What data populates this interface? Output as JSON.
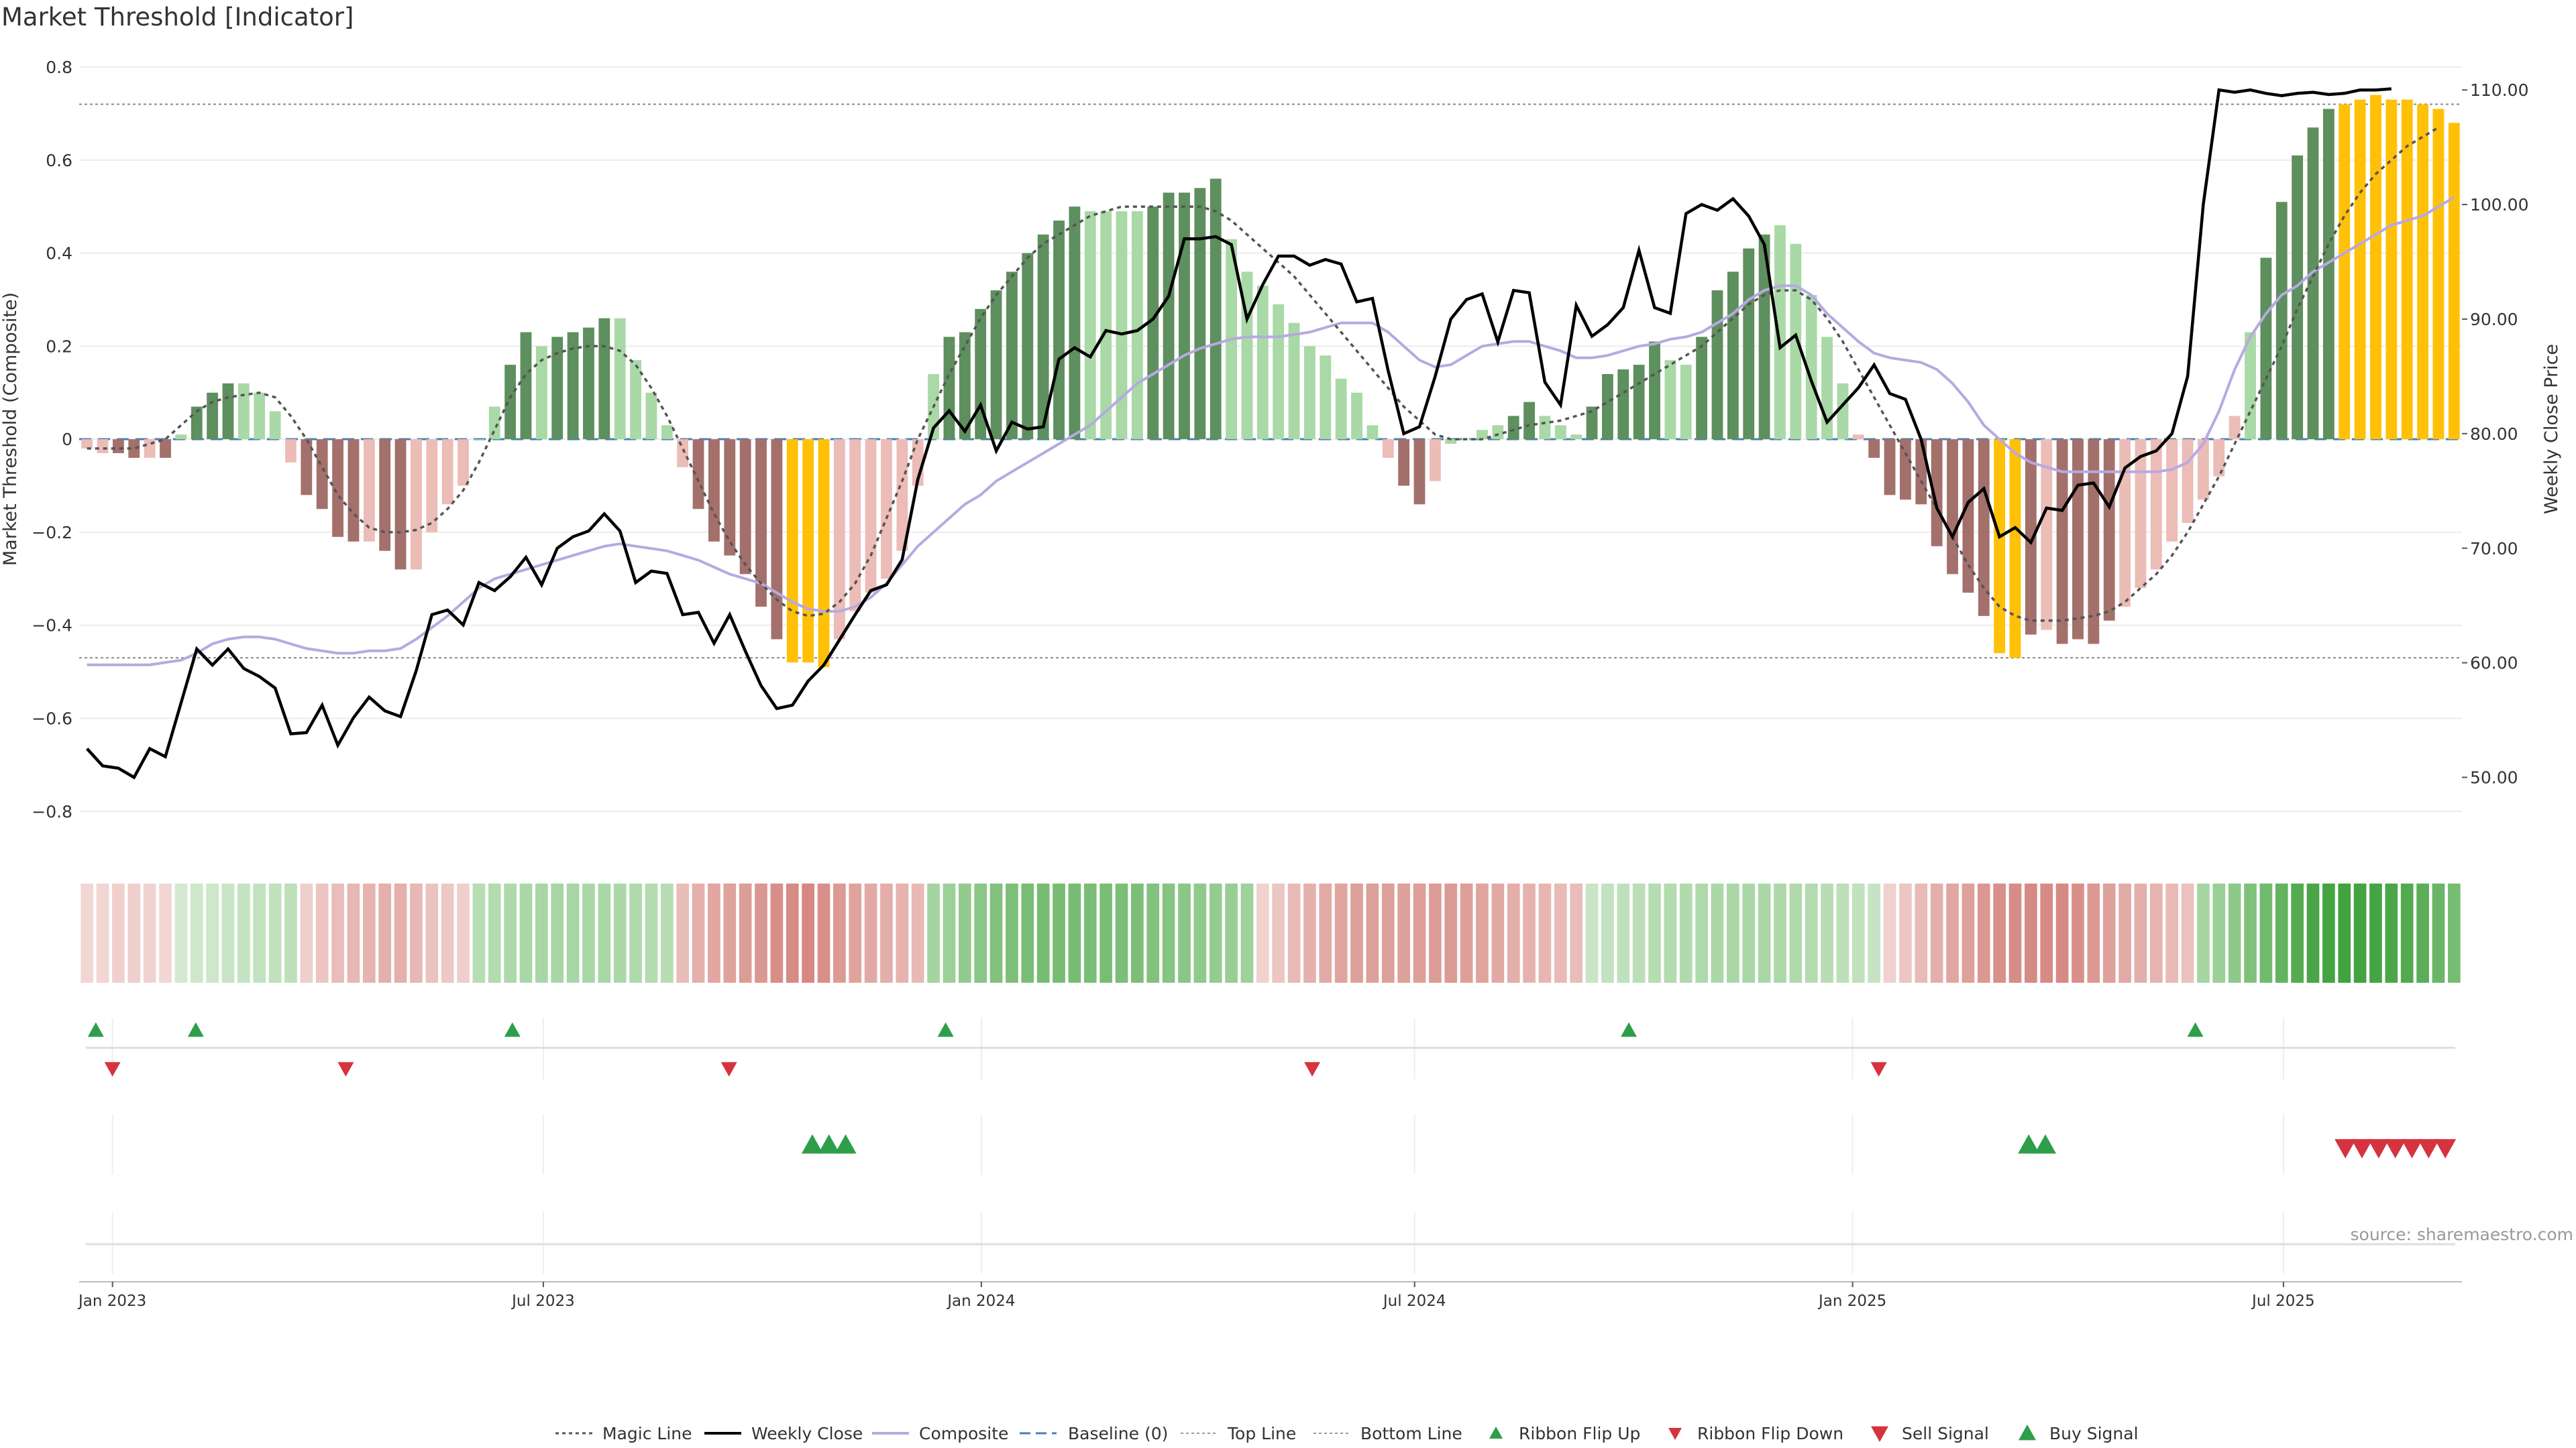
{
  "chart_data": {
    "type": "bar",
    "title": "Market Threshold [Indicator]",
    "ylabel_left": "Market Threshold (Composite)",
    "ylabel_right": "Weekly Close Price",
    "ylim_left": [
      -0.85,
      0.8
    ],
    "ylim_right": [
      45.0,
      112.0
    ],
    "yticks_left": [
      "0.8",
      "0.6",
      "0.4",
      "0.2",
      "0",
      "−0.2",
      "−0.4",
      "−0.6",
      "−0.8"
    ],
    "yticks_right": [
      "110.00",
      "100.00",
      "90.00",
      "80.00",
      "70.00",
      "60.00",
      "50.00"
    ],
    "x_start": "2022-12-18",
    "x_end": "2025-09-14",
    "xticks": [
      {
        "label": "Jan 2023",
        "date": "2023-01-01"
      },
      {
        "label": "Jul 2023",
        "date": "2023-07-01"
      },
      {
        "label": "Jan 2024",
        "date": "2024-01-01"
      },
      {
        "label": "Jul 2024",
        "date": "2024-07-01"
      },
      {
        "label": "Jan 2025",
        "date": "2025-01-01"
      },
      {
        "label": "Jul 2025",
        "date": "2025-07-01"
      }
    ],
    "top_line": 0.72,
    "bottom_line": -0.47,
    "grid": true,
    "legend_position": "bottom",
    "source_note": "source: sharemaestro.com",
    "colors": {
      "strong_up": "#5e8f5e",
      "weak_up": "#a9d9a6",
      "strong_down": "#a3706b",
      "weak_down": "#ecbcb7",
      "extreme": "#ffc107",
      "weekly_close": "#000000",
      "composite": "#b7a9e0",
      "magic_line": "#555555",
      "buy": "#2e9e4a",
      "sell": "#d6333e"
    },
    "legend": [
      {
        "label": "Magic Line",
        "style": "dotted"
      },
      {
        "label": "Weekly Close",
        "style": "line"
      },
      {
        "label": "Composite",
        "style": "line-light"
      },
      {
        "label": "Baseline (0)",
        "style": "dashed"
      },
      {
        "label": "Top Line",
        "style": "thin-dotted"
      },
      {
        "label": "Bottom Line",
        "style": "thin-dotted"
      },
      {
        "label": "Ribbon Flip Up",
        "style": "tri-up-small"
      },
      {
        "label": "Ribbon Flip Down",
        "style": "tri-down-small"
      },
      {
        "label": "Sell Signal",
        "style": "tri-down"
      },
      {
        "label": "Buy Signal",
        "style": "tri-up"
      }
    ],
    "composite_bars": [
      -0.02,
      -0.03,
      -0.03,
      -0.04,
      -0.04,
      -0.04,
      0.01,
      0.07,
      0.1,
      0.12,
      0.12,
      0.1,
      0.06,
      -0.05,
      -0.12,
      -0.15,
      -0.21,
      -0.22,
      -0.22,
      -0.24,
      -0.28,
      -0.28,
      -0.2,
      -0.14,
      -0.1,
      0.0,
      0.07,
      0.16,
      0.23,
      0.2,
      0.22,
      0.23,
      0.24,
      0.26,
      0.26,
      0.17,
      0.1,
      0.03,
      -0.06,
      -0.15,
      -0.22,
      -0.25,
      -0.29,
      -0.36,
      -0.43,
      -0.48,
      -0.48,
      -0.49,
      -0.43,
      -0.37,
      -0.33,
      -0.3,
      -0.24,
      -0.1,
      0.14,
      0.22,
      0.23,
      0.28,
      0.32,
      0.36,
      0.4,
      0.44,
      0.47,
      0.5,
      0.49,
      0.49,
      0.49,
      0.49,
      0.5,
      0.53,
      0.53,
      0.54,
      0.56,
      0.43,
      0.36,
      0.33,
      0.29,
      0.25,
      0.2,
      0.18,
      0.13,
      0.1,
      0.03,
      -0.04,
      -0.1,
      -0.14,
      -0.09,
      -0.01,
      0.0,
      0.02,
      0.03,
      0.05,
      0.08,
      0.05,
      0.03,
      0.01,
      0.07,
      0.14,
      0.15,
      0.16,
      0.21,
      0.17,
      0.16,
      0.22,
      0.32,
      0.36,
      0.41,
      0.44,
      0.46,
      0.42,
      0.31,
      0.22,
      0.12,
      0.01,
      -0.04,
      -0.12,
      -0.13,
      -0.14,
      -0.23,
      -0.29,
      -0.33,
      -0.38,
      -0.46,
      -0.47,
      -0.42,
      -0.41,
      -0.44,
      -0.43,
      -0.44,
      -0.39,
      -0.36,
      -0.32,
      -0.28,
      -0.22,
      -0.18,
      -0.13,
      -0.08,
      0.05,
      0.23,
      0.39,
      0.51,
      0.61,
      0.67,
      0.71,
      0.72,
      0.73,
      0.74,
      0.73,
      0.73,
      0.72,
      0.71,
      0.68
    ],
    "bar_classes": [
      "wd",
      "wd",
      "sd",
      "sd",
      "wd",
      "sd",
      "wu",
      "su",
      "su",
      "su",
      "wu",
      "wu",
      "wu",
      "wd",
      "sd",
      "sd",
      "sd",
      "sd",
      "wd",
      "sd",
      "sd",
      "wd",
      "wd",
      "wd",
      "wd",
      "wu",
      "wu",
      "su",
      "su",
      "wu",
      "su",
      "su",
      "su",
      "su",
      "wu",
      "wu",
      "wu",
      "wu",
      "wd",
      "sd",
      "sd",
      "sd",
      "sd",
      "sd",
      "sd",
      "x",
      "x",
      "x",
      "wd",
      "wd",
      "wd",
      "wd",
      "wd",
      "wd",
      "wu",
      "su",
      "su",
      "su",
      "su",
      "su",
      "su",
      "su",
      "su",
      "su",
      "wu",
      "wu",
      "wu",
      "wu",
      "su",
      "su",
      "su",
      "su",
      "su",
      "wu",
      "wu",
      "wu",
      "wu",
      "wu",
      "wu",
      "wu",
      "wu",
      "wu",
      "wu",
      "wd",
      "sd",
      "sd",
      "wd",
      "wu",
      "wu",
      "wu",
      "wu",
      "su",
      "su",
      "wu",
      "wu",
      "wu",
      "su",
      "su",
      "su",
      "su",
      "su",
      "wu",
      "wu",
      "su",
      "su",
      "su",
      "su",
      "su",
      "wu",
      "wu",
      "wu",
      "wu",
      "wu",
      "wd",
      "sd",
      "sd",
      "sd",
      "sd",
      "sd",
      "sd",
      "sd",
      "sd",
      "x",
      "x",
      "sd",
      "wd",
      "sd",
      "sd",
      "sd",
      "sd",
      "wd",
      "wd",
      "wd",
      "wd",
      "wd",
      "wd",
      "wd",
      "wd",
      "wu",
      "su",
      "su",
      "su",
      "su",
      "su",
      "x",
      "x",
      "x",
      "x",
      "x",
      "x",
      "x",
      "x",
      "x",
      "wu"
    ],
    "weekly_close": [
      52.5,
      51.0,
      50.8,
      50.0,
      52.5,
      51.8,
      56.5,
      61.2,
      59.8,
      61.2,
      59.5,
      58.8,
      57.8,
      53.8,
      53.9,
      56.3,
      52.8,
      55.2,
      57.0,
      55.8,
      55.3,
      59.3,
      64.2,
      64.6,
      63.3,
      67.0,
      66.3,
      67.5,
      69.2,
      66.8,
      70.0,
      71.0,
      71.5,
      73.0,
      71.5,
      67.0,
      68.0,
      67.8,
      64.2,
      64.4,
      61.7,
      64.2,
      61.0,
      58.0,
      56.0,
      56.3,
      58.4,
      59.8,
      62.0,
      64.2,
      66.3,
      66.8,
      69.0,
      76.0,
      80.5,
      82.0,
      80.2,
      82.5,
      78.5,
      81.0,
      80.4,
      80.6,
      86.5,
      87.5,
      86.7,
      89.0,
      88.7,
      89.0,
      90.0,
      92.0,
      97.0,
      97.0,
      97.2,
      96.5,
      90.0,
      93.0,
      95.5,
      95.5,
      94.7,
      95.2,
      94.8,
      91.5,
      91.8,
      85.5,
      80.0,
      80.6,
      85.0,
      90.0,
      91.7,
      92.2,
      88.0,
      92.5,
      92.3,
      84.5,
      82.5,
      91.2,
      88.5,
      89.5,
      91.0,
      96.0,
      91.0,
      90.5,
      99.2,
      100.0,
      99.5,
      100.5,
      99.0,
      96.5,
      87.5,
      88.6,
      84.6,
      81.0,
      82.5,
      84.0,
      86.0,
      83.5,
      83.0,
      79.5,
      73.5,
      71.0,
      74.0,
      75.2,
      71.0,
      71.8,
      70.5,
      73.5,
      73.3,
      75.5,
      75.7,
      73.6,
      77.0,
      78.0,
      78.5,
      80.0,
      85.0,
      100.0,
      110.0,
      109.8,
      110.0,
      109.7,
      109.5,
      109.7,
      109.8,
      109.6,
      109.7,
      110.0,
      110.0,
      110.1
    ],
    "composite_line": [
      -0.485,
      -0.485,
      -0.485,
      -0.485,
      -0.485,
      -0.48,
      -0.475,
      -0.46,
      -0.44,
      -0.43,
      -0.425,
      -0.425,
      -0.43,
      -0.44,
      -0.45,
      -0.455,
      -0.46,
      -0.46,
      -0.455,
      -0.455,
      -0.45,
      -0.43,
      -0.405,
      -0.38,
      -0.35,
      -0.32,
      -0.3,
      -0.29,
      -0.28,
      -0.27,
      -0.26,
      -0.25,
      -0.24,
      -0.23,
      -0.225,
      -0.23,
      -0.235,
      -0.24,
      -0.25,
      -0.26,
      -0.275,
      -0.29,
      -0.3,
      -0.31,
      -0.33,
      -0.35,
      -0.365,
      -0.37,
      -0.37,
      -0.36,
      -0.34,
      -0.31,
      -0.27,
      -0.23,
      -0.2,
      -0.17,
      -0.14,
      -0.12,
      -0.09,
      -0.07,
      -0.05,
      -0.03,
      -0.01,
      0.01,
      0.03,
      0.06,
      0.09,
      0.12,
      0.14,
      0.16,
      0.18,
      0.195,
      0.205,
      0.215,
      0.22,
      0.22,
      0.22,
      0.225,
      0.23,
      0.24,
      0.25,
      0.25,
      0.25,
      0.23,
      0.2,
      0.17,
      0.155,
      0.16,
      0.18,
      0.2,
      0.205,
      0.21,
      0.21,
      0.2,
      0.19,
      0.175,
      0.175,
      0.18,
      0.19,
      0.2,
      0.205,
      0.215,
      0.22,
      0.23,
      0.25,
      0.27,
      0.3,
      0.32,
      0.33,
      0.33,
      0.31,
      0.27,
      0.24,
      0.21,
      0.185,
      0.175,
      0.17,
      0.165,
      0.15,
      0.12,
      0.08,
      0.03,
      0.0,
      -0.03,
      -0.05,
      -0.06,
      -0.07,
      -0.07,
      -0.07,
      -0.07,
      -0.07,
      -0.07,
      -0.07,
      -0.065,
      -0.05,
      -0.01,
      0.06,
      0.15,
      0.22,
      0.27,
      0.31,
      0.33,
      0.36,
      0.38,
      0.4,
      0.42,
      0.44,
      0.46,
      0.47,
      0.48,
      0.5,
      0.52
    ],
    "magic_line": [
      -0.02,
      -0.02,
      -0.02,
      -0.02,
      -0.01,
      0.0,
      0.03,
      0.06,
      0.08,
      0.09,
      0.095,
      0.1,
      0.09,
      0.05,
      0.0,
      -0.06,
      -0.12,
      -0.16,
      -0.19,
      -0.2,
      -0.2,
      -0.195,
      -0.18,
      -0.15,
      -0.11,
      -0.05,
      0.02,
      0.09,
      0.14,
      0.17,
      0.185,
      0.195,
      0.2,
      0.2,
      0.19,
      0.16,
      0.11,
      0.05,
      -0.02,
      -0.09,
      -0.16,
      -0.22,
      -0.27,
      -0.31,
      -0.345,
      -0.37,
      -0.38,
      -0.375,
      -0.35,
      -0.31,
      -0.25,
      -0.17,
      -0.09,
      0.0,
      0.07,
      0.14,
      0.2,
      0.26,
      0.31,
      0.35,
      0.39,
      0.42,
      0.44,
      0.46,
      0.48,
      0.49,
      0.5,
      0.5,
      0.5,
      0.5,
      0.5,
      0.5,
      0.49,
      0.47,
      0.44,
      0.41,
      0.38,
      0.35,
      0.31,
      0.27,
      0.23,
      0.19,
      0.15,
      0.11,
      0.07,
      0.04,
      0.01,
      0.0,
      0.0,
      0.0,
      0.01,
      0.02,
      0.03,
      0.035,
      0.04,
      0.05,
      0.06,
      0.08,
      0.1,
      0.12,
      0.14,
      0.16,
      0.18,
      0.2,
      0.23,
      0.26,
      0.29,
      0.31,
      0.32,
      0.32,
      0.3,
      0.26,
      0.21,
      0.15,
      0.09,
      0.03,
      -0.03,
      -0.09,
      -0.15,
      -0.21,
      -0.27,
      -0.32,
      -0.36,
      -0.38,
      -0.39,
      -0.39,
      -0.39,
      -0.385,
      -0.38,
      -0.37,
      -0.35,
      -0.32,
      -0.29,
      -0.25,
      -0.2,
      -0.14,
      -0.08,
      -0.01,
      0.06,
      0.13,
      0.2,
      0.28,
      0.35,
      0.42,
      0.48,
      0.53,
      0.57,
      0.6,
      0.63,
      0.65,
      0.67
    ],
    "ribbon": [
      1,
      1,
      1,
      1,
      1,
      1,
      2,
      2,
      2,
      2,
      2,
      2,
      2,
      2,
      1,
      1,
      1,
      1,
      1,
      1,
      1,
      1,
      1,
      1,
      1,
      3,
      3,
      3,
      3,
      3,
      3,
      3,
      3,
      3,
      3,
      3,
      3,
      3,
      2,
      2,
      2,
      2,
      2,
      2,
      2,
      2,
      2,
      2,
      2,
      2,
      2,
      2,
      2,
      2,
      4,
      4,
      4,
      4,
      4,
      4,
      4,
      4,
      4,
      4,
      4,
      4,
      4,
      4,
      4,
      4,
      4,
      4,
      4,
      4,
      4,
      1,
      1,
      1,
      1,
      1,
      1,
      1,
      1,
      1,
      1,
      1,
      1,
      1,
      1,
      1,
      1,
      1,
      1,
      1,
      1,
      1,
      2,
      2,
      2,
      2,
      2,
      2,
      2,
      2,
      2,
      2,
      2,
      2,
      2,
      2,
      2,
      2,
      2,
      2,
      2,
      3,
      3,
      3,
      3,
      3,
      3,
      3,
      3,
      3,
      3,
      3,
      3,
      3,
      3,
      3,
      3,
      3,
      3,
      3,
      3,
      3,
      3,
      3,
      3,
      3,
      3,
      3,
      3,
      3,
      3,
      3,
      3,
      3,
      3,
      3,
      3,
      3,
      3,
      3,
      3,
      3
    ],
    "ribbon_colors": [
      "#f2d6d4",
      "#f2d6d4",
      "#f0d0cd",
      "#efcfcc",
      "#f0d3d0",
      "#f2d6d4",
      "#d3ead1",
      "#cfe8cc",
      "#cde7ca",
      "#c8e5c5",
      "#c4e3c1",
      "#c2e2bf",
      "#c0e1bc",
      "#bde0b9",
      "#eecfcc",
      "#ecc5c1",
      "#e9bdb9",
      "#e7b7b3",
      "#e6b3ae",
      "#e5b0ab",
      "#e5afaa",
      "#e8b8b4",
      "#ebc2be",
      "#edc8c4",
      "#efcfcc",
      "#b7deb3",
      "#b2dbae",
      "#aed9aa",
      "#aad7a6",
      "#a8d6a4",
      "#a8d6a4",
      "#a8d6a4",
      "#aad7a6",
      "#aad7a6",
      "#acd8a8",
      "#afdaab",
      "#b3dcaf",
      "#b7ddb3",
      "#e9bdb9",
      "#e5b0ab",
      "#e1a6a1",
      "#dfa29c",
      "#dd9d97",
      "#db9791",
      "#d98f89",
      "#d78b85",
      "#d68882",
      "#d98f89",
      "#dc9a94",
      "#dfa39d",
      "#e2aaa5",
      "#e4afaa",
      "#e6b3ae",
      "#e8b9b5",
      "#a4d4a0",
      "#9dd099",
      "#93cb8f",
      "#8ac786",
      "#82c27e",
      "#7dbf79",
      "#79bd75",
      "#77bc73",
      "#78bc74",
      "#78bc74",
      "#7abd76",
      "#79bd75",
      "#7bbe77",
      "#7dbf79",
      "#82c17e",
      "#86c482",
      "#8ac686",
      "#90c98c",
      "#94cb90",
      "#98cd94",
      "#9fd19b",
      "#f0d1ce",
      "#ecc6c2",
      "#e8bab6",
      "#e5b1ac",
      "#e2aaa5",
      "#e0a49f",
      "#dea09a",
      "#dea09a",
      "#dda09a",
      "#dea19b",
      "#df9f99",
      "#dd9d97",
      "#dc9a94",
      "#de9f99",
      "#e0a49f",
      "#e2a9a4",
      "#e4aea9",
      "#e6b2ad",
      "#e8b6b2",
      "#e9bab6",
      "#eabdb9",
      "#c8e5c5",
      "#c3e2c0",
      "#bfe0bc",
      "#bbdeb8",
      "#b6dcb2",
      "#b2dbae",
      "#b0daac",
      "#aed9aa",
      "#acd8a8",
      "#abd7a7",
      "#aad7a6",
      "#abd7a7",
      "#add8a9",
      "#b0daac",
      "#b4dbb0",
      "#b8ddb4",
      "#bcdfb8",
      "#c1e1bd",
      "#c6e3c3",
      "#f0d1ce",
      "#ecc6c2",
      "#e8bbb7",
      "#e4afaa",
      "#e1a6a1",
      "#dea09a",
      "#db9892",
      "#d8908a",
      "#d78d87",
      "#d68a84",
      "#d78b85",
      "#d68a84",
      "#d98f89",
      "#dc9993",
      "#dea19b",
      "#e2aaa5",
      "#e4afaa",
      "#e6b3ae",
      "#e8b9b5",
      "#ebc2be",
      "#a6d5a2",
      "#9bcf97",
      "#8ec98a",
      "#80c17c",
      "#72ba6e",
      "#64b360",
      "#55ab51",
      "#4aa547",
      "#45a342",
      "#43a240",
      "#44a241",
      "#47a444",
      "#4ba648",
      "#52a94f",
      "#5cad59",
      "#6ab567",
      "#77bc73",
      "#8ac686"
    ],
    "ribbon_flip_up": [
      "2022-12-25",
      "2023-02-05",
      "2023-06-18",
      "2023-12-17",
      "2024-09-29",
      "2025-05-25"
    ],
    "ribbon_flip_down": [
      "2023-01-01",
      "2023-04-09",
      "2023-09-17",
      "2024-05-19",
      "2025-01-12"
    ],
    "buy_signal": [
      "2023-10-22",
      "2023-10-29",
      "2023-11-05",
      "2025-03-16",
      "2025-03-23"
    ],
    "sell_signal": [
      "2025-07-27",
      "2025-08-03",
      "2025-08-10",
      "2025-08-17",
      "2025-08-24",
      "2025-08-31",
      "2025-09-07"
    ]
  }
}
